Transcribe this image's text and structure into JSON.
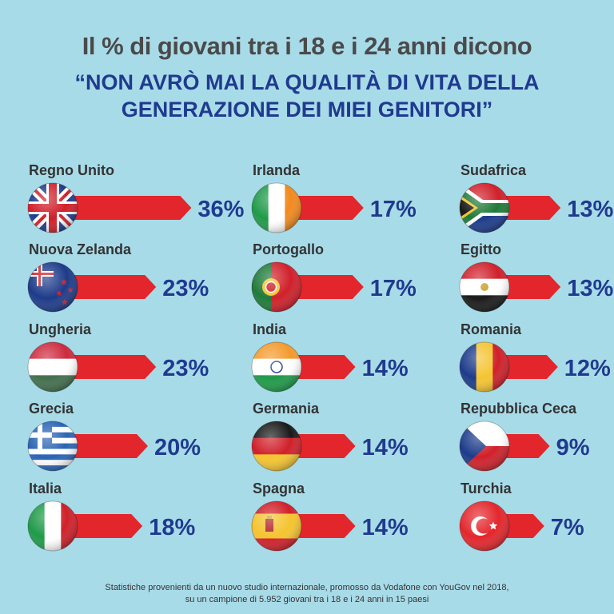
{
  "header": {
    "title": "Il % di giovani tra i 18 e i 24 anni dicono",
    "subtitle_line1": "“NON AVRÒ MAI LA QUALITÀ DI VITA DELLA",
    "subtitle_line2": "GENERAZIONE DEI MIEI GENITORI”"
  },
  "footnote": {
    "line1": "Statistiche provenienti da un nuovo studio internazionale, promosso da Vodafone con YouGov nel 2018,",
    "line2": "su un campione di 5.952 giovani tra i 18 e i 24 anni in 15 paesi"
  },
  "colors": {
    "background": "#a8dbe8",
    "arrow": "#e3262c",
    "label": "#333333",
    "value": "#1f3a8f"
  },
  "chart_data": {
    "type": "bar",
    "unit": "%",
    "categories": [
      "Regno Unito",
      "Nuova Zelanda",
      "Ungheria",
      "Grecia",
      "Italia",
      "Irlanda",
      "Portogallo",
      "India",
      "Germania",
      "Spagna",
      "Sudafrica",
      "Egitto",
      "Romania",
      "Repubblica Ceca",
      "Turchia"
    ],
    "values": [
      36,
      23,
      23,
      20,
      18,
      17,
      17,
      14,
      14,
      14,
      13,
      13,
      12,
      9,
      7
    ],
    "value_labels": [
      "36%",
      "23%",
      "23%",
      "20%",
      "18%",
      "17%",
      "17%",
      "14%",
      "14%",
      "14%",
      "13%",
      "13%",
      "12%",
      "9%",
      "7%"
    ],
    "flag_icons": [
      "flag-uk-icon",
      "flag-new-zealand-icon",
      "flag-hungary-icon",
      "flag-greece-icon",
      "flag-italy-icon",
      "flag-ireland-icon",
      "flag-portugal-icon",
      "flag-india-icon",
      "flag-germany-icon",
      "flag-spain-icon",
      "flag-south-africa-icon",
      "flag-egypt-icon",
      "flag-romania-icon",
      "flag-czech-republic-icon",
      "flag-turkey-icon"
    ],
    "grid": false,
    "legend": "none"
  }
}
